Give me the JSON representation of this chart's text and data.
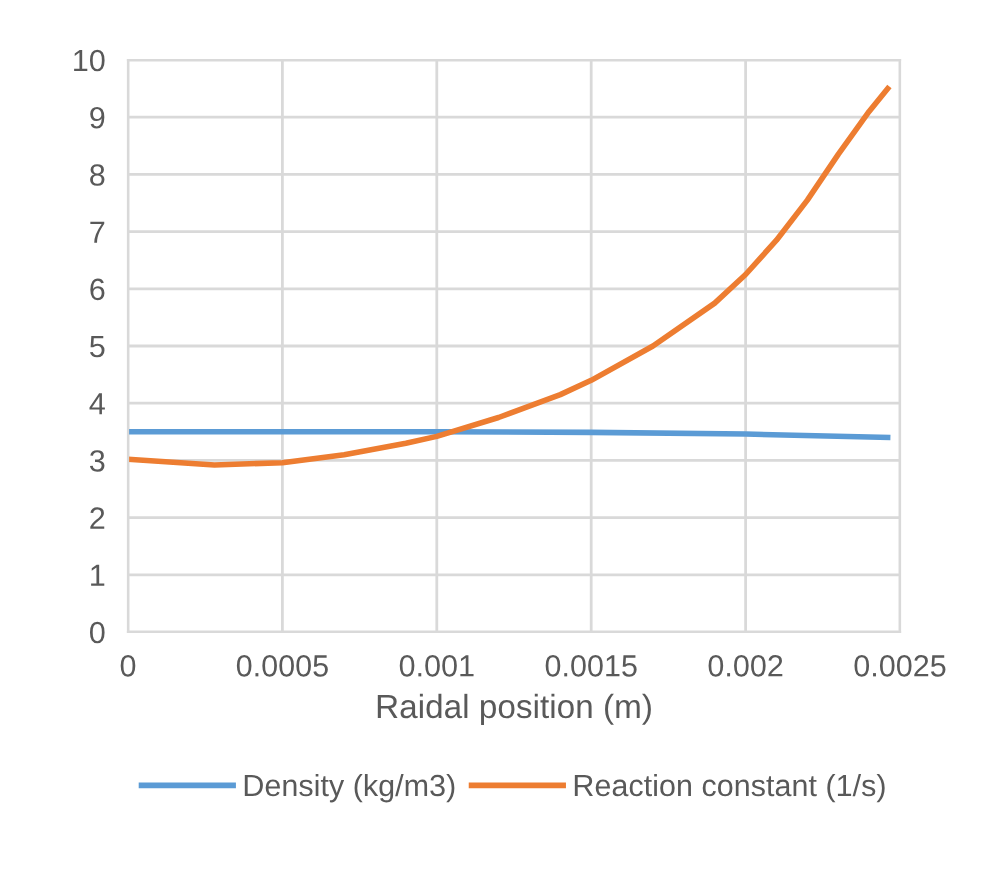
{
  "chart_data": {
    "type": "line",
    "xlabel": "Raidal position (m)",
    "xlim": [
      0,
      0.0025
    ],
    "xticks": [
      0,
      0.0005,
      0.001,
      0.0015,
      0.002,
      0.0025
    ],
    "ylim": [
      0,
      10
    ],
    "yticks": [
      0,
      1,
      2,
      3,
      4,
      5,
      6,
      7,
      8,
      9,
      10
    ],
    "grid": true,
    "legend": "bottom",
    "marker": "none",
    "line_style": "solid",
    "series": [
      {
        "name": "Density (kg/m3)",
        "color": "#5b9bd5",
        "x": [
          0,
          0.0005,
          0.001,
          0.0015,
          0.002,
          0.00246
        ],
        "values": [
          3.5,
          3.5,
          3.5,
          3.49,
          3.46,
          3.4
        ]
      },
      {
        "name": "Reaction constant (1/s)",
        "color": "#ed7d31",
        "x": [
          0,
          0.00028,
          0.0005,
          0.0007,
          0.0009,
          0.001,
          0.0012,
          0.0014,
          0.0015,
          0.0017,
          0.0019,
          0.002,
          0.0021,
          0.0022,
          0.0023,
          0.0024,
          0.00246
        ],
        "values": [
          3.02,
          2.92,
          2.96,
          3.1,
          3.3,
          3.42,
          3.75,
          4.15,
          4.4,
          5.0,
          5.75,
          6.25,
          6.85,
          7.55,
          8.35,
          9.1,
          9.5
        ]
      }
    ]
  }
}
